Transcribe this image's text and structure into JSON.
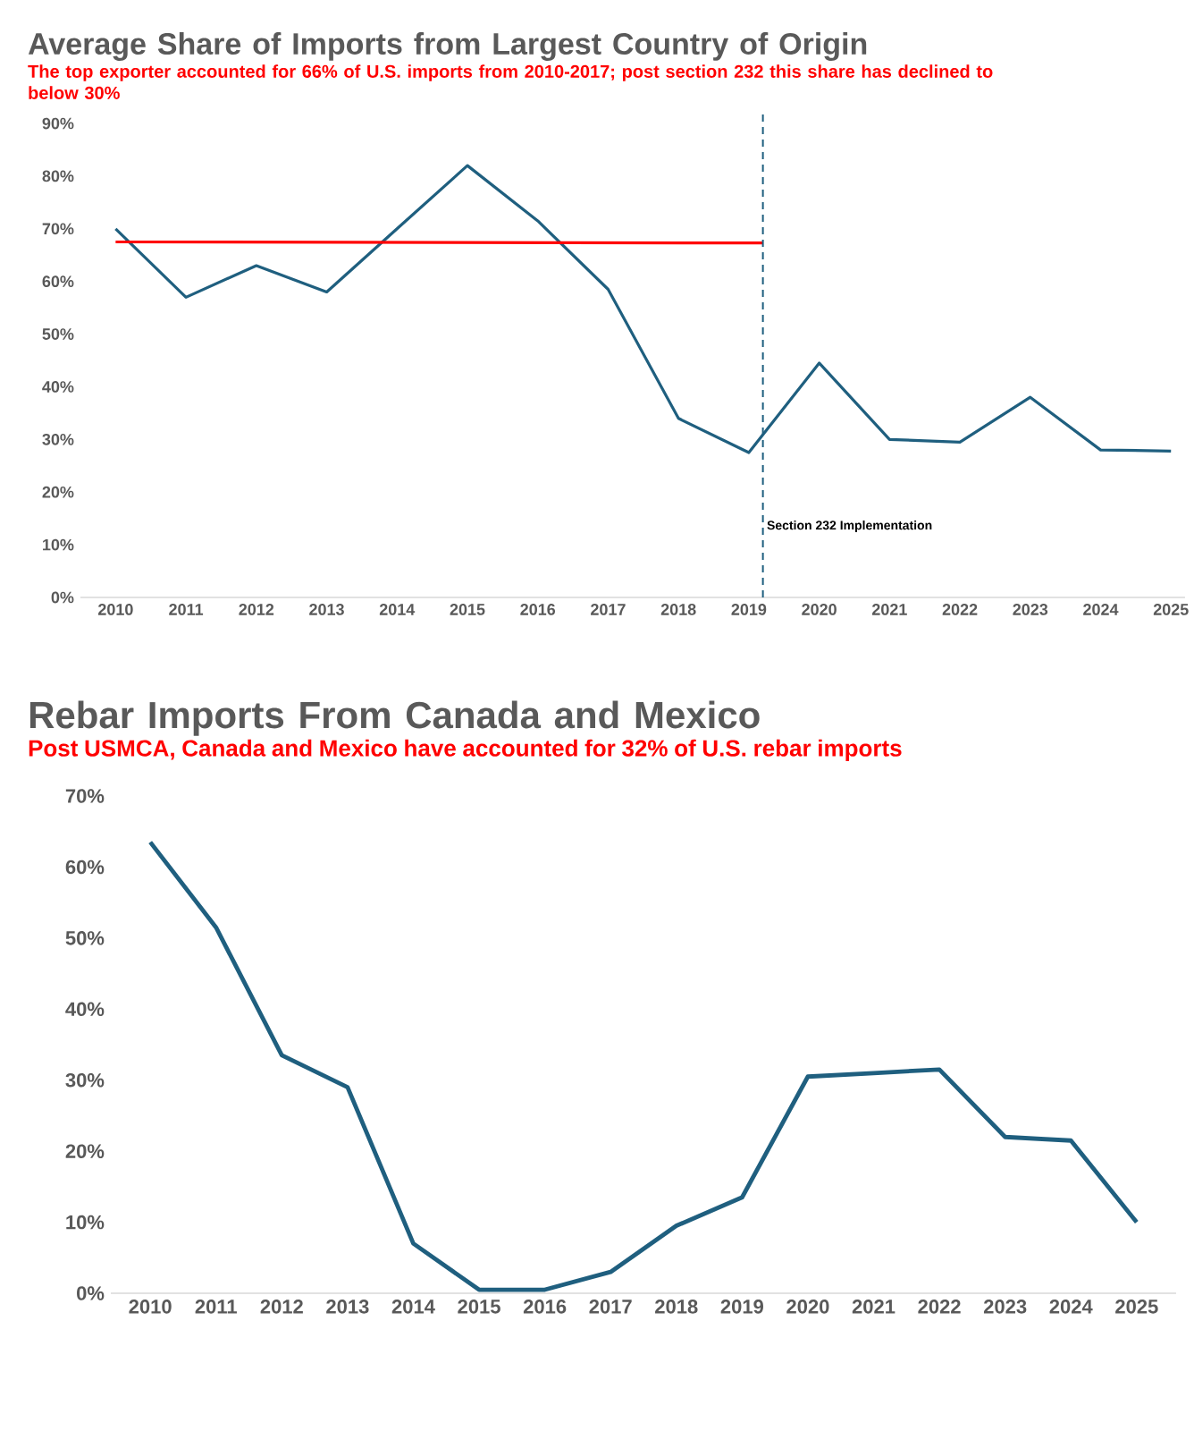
{
  "chart_data": [
    {
      "type": "line",
      "title": "Average Share of Imports from Largest Country of Origin",
      "subtitle": "The top exporter accounted for 66% of U.S. imports from 2010-2017; post section 232 this share has declined to below 30%",
      "x": [
        2010,
        2011,
        2012,
        2013,
        2014,
        2015,
        2016,
        2017,
        2018,
        2019,
        2020,
        2021,
        2022,
        2023,
        2024,
        2025
      ],
      "series": [
        {
          "color": "#1f5f7f",
          "values": [
            70,
            57,
            63,
            58,
            70,
            82,
            71.5,
            58.5,
            34,
            27.5,
            44.5,
            30,
            29.5,
            38,
            28,
            27.8
          ]
        },
        {
          "color": "#ff0000",
          "x": [
            2010,
            2019.2
          ],
          "values": [
            67.5,
            67.3
          ]
        }
      ],
      "xlim": [
        2009.5,
        2025.2
      ],
      "xticks": [
        2010,
        2011,
        2012,
        2013,
        2014,
        2015,
        2016,
        2017,
        2018,
        2019,
        2020,
        2021,
        2022,
        2023,
        2024,
        2025
      ],
      "ylim": [
        0,
        90
      ],
      "yticks": [
        {
          "value": 0,
          "label": "0%"
        },
        {
          "value": 10,
          "label": "10%"
        },
        {
          "value": 20,
          "label": "20%"
        },
        {
          "value": 30,
          "label": "30%"
        },
        {
          "value": 40,
          "label": "40%"
        },
        {
          "value": 50,
          "label": "50%"
        },
        {
          "value": 60,
          "label": "60%"
        },
        {
          "value": 70,
          "label": "70%"
        },
        {
          "value": 80,
          "label": "80%"
        },
        {
          "value": 90,
          "label": "90%"
        }
      ],
      "ref_lines": [
        {
          "axis": "x",
          "value": 2019.2,
          "label": "Section 232 Implementation",
          "color": "#1f5f7f",
          "line_style": "dashed"
        }
      ],
      "grid": false,
      "marker": "none"
    },
    {
      "type": "line",
      "title": "Rebar Imports From Canada and Mexico",
      "subtitle": "Post USMCA, Canada and Mexico have accounted for 32% of U.S. rebar imports",
      "x": [
        2010,
        2011,
        2012,
        2013,
        2014,
        2015,
        2016,
        2017,
        2018,
        2019,
        2020,
        2021,
        2022,
        2023,
        2024,
        2025
      ],
      "series": [
        {
          "color": "#1f5f7f",
          "values": [
            63.5,
            51.5,
            33.5,
            29,
            7,
            0.5,
            0.5,
            3,
            9.5,
            13.5,
            30.5,
            31,
            31.5,
            22,
            21.5,
            10
          ]
        }
      ],
      "xlim": [
        2009.4,
        2025.6
      ],
      "xticks": [
        2010,
        2011,
        2012,
        2013,
        2014,
        2015,
        2016,
        2017,
        2018,
        2019,
        2020,
        2021,
        2022,
        2023,
        2024,
        2025
      ],
      "ylim": [
        0,
        70
      ],
      "yticks": [
        {
          "value": 0,
          "label": "0%"
        },
        {
          "value": 10,
          "label": "10%"
        },
        {
          "value": 20,
          "label": "20%"
        },
        {
          "value": 30,
          "label": "30%"
        },
        {
          "value": 40,
          "label": "40%"
        },
        {
          "value": 50,
          "label": "50%"
        },
        {
          "value": 60,
          "label": "60%"
        },
        {
          "value": 70,
          "label": "70%"
        }
      ],
      "grid": false,
      "marker": "none"
    }
  ]
}
